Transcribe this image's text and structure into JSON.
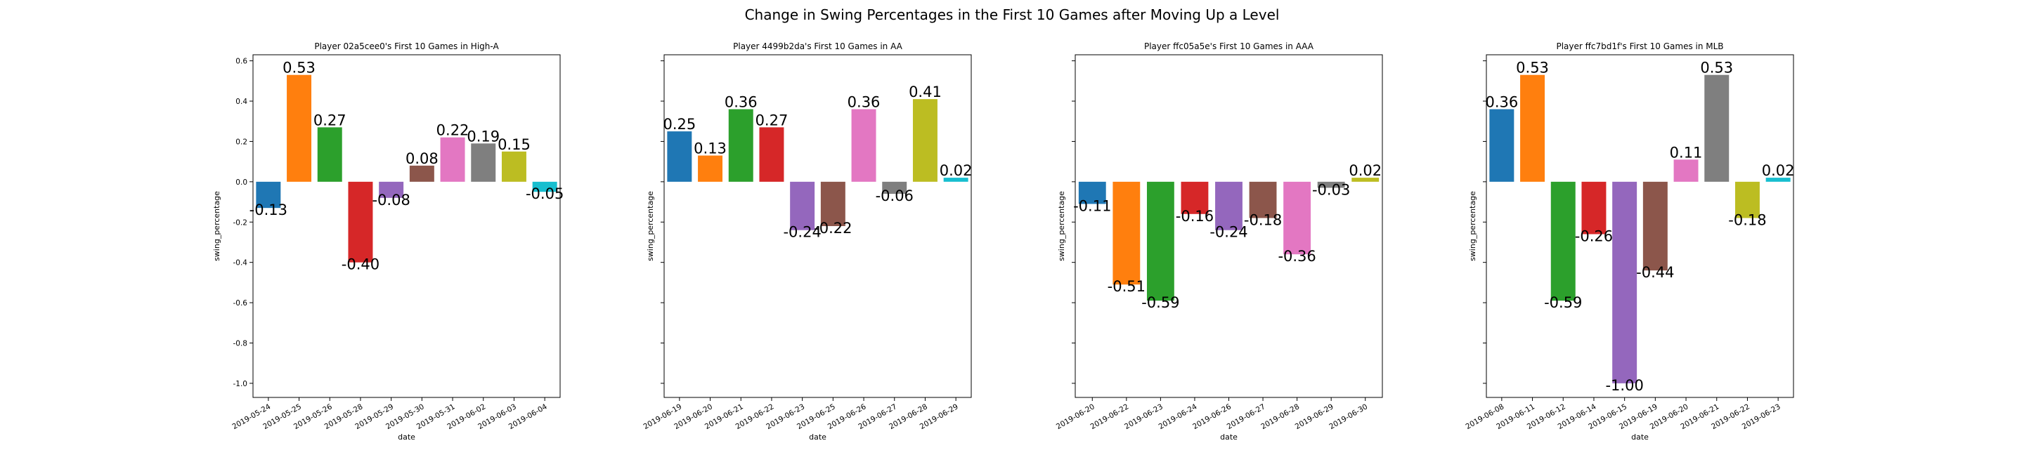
{
  "figure": {
    "suptitle": "Change in Swing Percentages in the First 10 Games after Moving Up a Level"
  },
  "palette": [
    "#1f77b4",
    "#ff7f0e",
    "#2ca02c",
    "#d62728",
    "#9467bd",
    "#8c564b",
    "#e377c2",
    "#7f7f7f",
    "#bcbd22",
    "#17becf"
  ],
  "chart_data": [
    {
      "type": "bar",
      "title": "Player 02a5cee0's First 10 Games in High-A",
      "xlabel": "date",
      "ylabel": "swing_percentage",
      "ylim": [
        -1.07,
        0.63
      ],
      "yticks": [
        "0.6",
        "0.4",
        "0.2",
        "0.0",
        "-0.2",
        "-0.4",
        "-0.6",
        "-0.8",
        "-1.0"
      ],
      "yticks_visible": true,
      "categories": [
        "2019-05-24",
        "2019-05-25",
        "2019-05-26",
        "2019-05-28",
        "2019-05-29",
        "2019-05-30",
        "2019-05-31",
        "2019-06-02",
        "2019-06-03",
        "2019-06-04"
      ],
      "values": [
        -0.13,
        0.53,
        0.27,
        -0.4,
        -0.08,
        0.08,
        0.22,
        0.19,
        0.15,
        -0.05
      ],
      "labels": [
        "-0.13",
        "0.53",
        "0.27",
        "-0.40",
        "-0.08",
        "0.08",
        "0.22",
        "0.19",
        "0.15",
        "-0.05"
      ]
    },
    {
      "type": "bar",
      "title": "Player 4499b2da's First 10 Games in AA",
      "xlabel": "date",
      "ylabel": "swing_percentage",
      "ylim": [
        -1.07,
        0.63
      ],
      "yticks": [
        "0.6",
        "0.4",
        "0.2",
        "0.0",
        "-0.2",
        "-0.4",
        "-0.6",
        "-0.8",
        "-1.0"
      ],
      "yticks_visible": false,
      "categories": [
        "2019-06-19",
        "2019-06-20",
        "2019-06-21",
        "2019-06-22",
        "2019-06-23",
        "2019-06-25",
        "2019-06-26",
        "2019-06-27",
        "2019-06-28",
        "2019-06-29"
      ],
      "values": [
        0.25,
        0.13,
        0.36,
        0.27,
        -0.24,
        -0.22,
        0.36,
        -0.06,
        0.41,
        0.02
      ],
      "labels": [
        "0.25",
        "0.13",
        "0.36",
        "0.27",
        "-0.24",
        "-0.22",
        "0.36",
        "-0.06",
        "0.41",
        "0.02"
      ]
    },
    {
      "type": "bar",
      "title": "Player ffc05a5e's First 10 Games in AAA",
      "xlabel": "date",
      "ylabel": "swing_percentage",
      "ylim": [
        -1.07,
        0.63
      ],
      "yticks": [
        "0.6",
        "0.4",
        "0.2",
        "0.0",
        "-0.2",
        "-0.4",
        "-0.6",
        "-0.8",
        "-1.0"
      ],
      "yticks_visible": false,
      "categories": [
        "2019-06-20",
        "2019-06-22",
        "2019-06-23",
        "2019-06-24",
        "2019-06-26",
        "2019-06-27",
        "2019-06-28",
        "2019-06-29",
        "2019-06-30"
      ],
      "values": [
        -0.11,
        -0.51,
        -0.59,
        -0.16,
        -0.24,
        -0.18,
        -0.36,
        -0.03,
        0.02
      ],
      "labels": [
        "-0.11",
        "-0.51",
        "-0.59",
        "-0.16",
        "-0.24",
        "-0.18",
        "-0.36",
        "-0.03",
        "0.02"
      ]
    },
    {
      "type": "bar",
      "title": "Player ffc7bd1f's First 10 Games in MLB",
      "xlabel": "date",
      "ylabel": "swing_percentage",
      "ylim": [
        -1.07,
        0.63
      ],
      "yticks": [
        "0.6",
        "0.4",
        "0.2",
        "0.0",
        "-0.2",
        "-0.4",
        "-0.6",
        "-0.8",
        "-1.0"
      ],
      "yticks_visible": false,
      "categories": [
        "2019-06-08",
        "2019-06-11",
        "2019-06-12",
        "2019-06-14",
        "2019-06-15",
        "2019-06-19",
        "2019-06-20",
        "2019-06-21",
        "2019-06-22",
        "2019-06-23"
      ],
      "values": [
        0.36,
        0.53,
        -0.59,
        -0.26,
        -1.0,
        -0.44,
        0.11,
        0.53,
        -0.18,
        0.02
      ],
      "labels": [
        "0.36",
        "0.53",
        "-0.59",
        "-0.26",
        "-1.00",
        "-0.44",
        "0.11",
        "0.53",
        "-0.18",
        "0.02"
      ]
    }
  ]
}
